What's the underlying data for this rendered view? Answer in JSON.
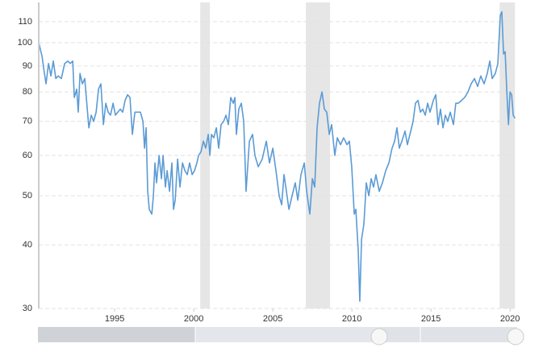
{
  "chart_data": {
    "type": "line",
    "yscale": "log",
    "grid": true,
    "color": "#5b9bd5",
    "recession_color": "#e6e6e6",
    "xlim": [
      1990.2,
      2020.4
    ],
    "ylim": [
      30,
      120
    ],
    "xticks": [
      1995,
      2000,
      2005,
      2010,
      2015,
      2020
    ],
    "yticks": [
      30,
      40,
      50,
      60,
      70,
      80,
      90,
      100,
      110
    ],
    "recessions": [
      [
        2000.41,
        2001.02
      ],
      [
        2007.09,
        2008.62
      ],
      [
        2019.34,
        2020.31
      ]
    ],
    "x": [
      1990.2,
      1990.41,
      1990.56,
      1990.66,
      1990.82,
      1990.97,
      1991.12,
      1991.28,
      1991.43,
      1991.63,
      1991.84,
      1992.04,
      1992.19,
      1992.35,
      1992.45,
      1992.6,
      1992.7,
      1992.81,
      1992.96,
      1993.11,
      1993.27,
      1993.37,
      1993.52,
      1993.67,
      1993.83,
      1993.98,
      1994.13,
      1994.29,
      1994.44,
      1994.59,
      1994.74,
      1994.9,
      1995.05,
      1995.2,
      1995.36,
      1995.51,
      1995.66,
      1995.82,
      1995.97,
      1996.12,
      1996.28,
      1996.48,
      1996.63,
      1996.79,
      1996.89,
      1996.99,
      1997.09,
      1997.19,
      1997.35,
      1997.45,
      1997.55,
      1997.65,
      1997.81,
      1997.96,
      1998.06,
      1998.21,
      1998.32,
      1998.47,
      1998.62,
      1998.72,
      1998.83,
      1998.98,
      1999.13,
      1999.29,
      1999.44,
      1999.59,
      1999.74,
      1999.9,
      2000.05,
      2000.2,
      2000.31,
      2000.46,
      2000.61,
      2000.76,
      2000.92,
      2001.02,
      2001.12,
      2001.27,
      2001.43,
      2001.58,
      2001.73,
      2001.89,
      2002.04,
      2002.19,
      2002.34,
      2002.5,
      2002.6,
      2002.7,
      2002.85,
      2003.01,
      2003.16,
      2003.31,
      2003.52,
      2003.72,
      2003.87,
      2004.08,
      2004.33,
      2004.59,
      2004.79,
      2005.0,
      2005.2,
      2005.4,
      2005.56,
      2005.71,
      2005.86,
      2006.02,
      2006.22,
      2006.42,
      2006.58,
      2006.78,
      2006.99,
      2007.14,
      2007.34,
      2007.5,
      2007.65,
      2007.8,
      2007.95,
      2008.11,
      2008.26,
      2008.41,
      2008.57,
      2008.72,
      2008.92,
      2009.08,
      2009.28,
      2009.48,
      2009.69,
      2009.84,
      2009.99,
      2010.15,
      2010.25,
      2010.4,
      2010.5,
      2010.61,
      2010.76,
      2010.91,
      2011.07,
      2011.22,
      2011.37,
      2011.52,
      2011.73,
      2011.93,
      2012.14,
      2012.34,
      2012.54,
      2012.7,
      2012.85,
      2013.0,
      2013.16,
      2013.36,
      2013.51,
      2013.72,
      2013.87,
      2014.02,
      2014.18,
      2014.33,
      2014.48,
      2014.64,
      2014.79,
      2014.94,
      2015.15,
      2015.3,
      2015.45,
      2015.6,
      2015.76,
      2015.91,
      2016.06,
      2016.22,
      2016.42,
      2016.57,
      2016.73,
      2016.93,
      2017.13,
      2017.34,
      2017.54,
      2017.75,
      2017.95,
      2018.15,
      2018.36,
      2018.56,
      2018.72,
      2018.87,
      2019.07,
      2019.23,
      2019.38,
      2019.48,
      2019.59,
      2019.69,
      2019.79,
      2019.9,
      2020.0,
      2020.1,
      2020.2,
      2020.31
    ],
    "values": [
      100,
      94,
      87,
      83,
      91,
      86,
      92,
      85,
      86,
      85,
      91,
      92,
      91,
      92,
      78,
      81,
      73,
      87,
      83,
      85,
      74,
      68,
      72,
      70,
      73,
      81,
      83,
      69,
      76,
      73,
      72,
      76,
      72,
      73,
      74,
      73,
      77,
      79,
      78,
      66,
      73,
      73,
      73,
      70,
      62,
      68,
      51,
      47,
      46,
      50,
      58,
      53,
      60,
      54,
      60,
      52,
      56,
      51,
      58,
      47,
      49,
      59,
      52,
      58,
      56,
      55,
      58,
      55,
      56,
      58,
      60,
      61,
      64,
      62,
      66,
      60,
      66,
      65,
      68,
      62,
      69,
      70,
      72,
      69,
      78,
      76,
      78,
      66,
      74,
      76,
      70,
      51,
      64,
      66,
      60,
      57,
      59,
      64,
      58,
      62,
      56,
      50,
      48,
      55,
      51,
      47,
      50,
      53,
      49,
      55,
      58,
      51,
      46,
      54,
      52,
      68,
      76,
      80,
      74,
      73,
      66,
      69,
      60,
      65,
      63,
      65,
      63,
      64,
      57,
      46,
      47,
      39,
      31,
      41,
      44,
      53,
      50,
      54,
      52,
      55,
      51,
      53,
      56,
      58,
      62,
      64,
      68,
      62,
      64,
      67,
      63,
      67,
      70,
      76,
      77,
      73,
      74,
      72,
      76,
      73,
      77,
      79,
      69,
      74,
      68,
      72,
      70,
      73,
      69,
      76,
      76,
      77,
      78,
      80,
      83,
      85,
      82,
      86,
      83,
      87,
      92,
      85,
      87,
      91,
      113,
      115,
      95,
      96,
      81,
      69,
      80,
      79,
      72,
      71
    ]
  }
}
